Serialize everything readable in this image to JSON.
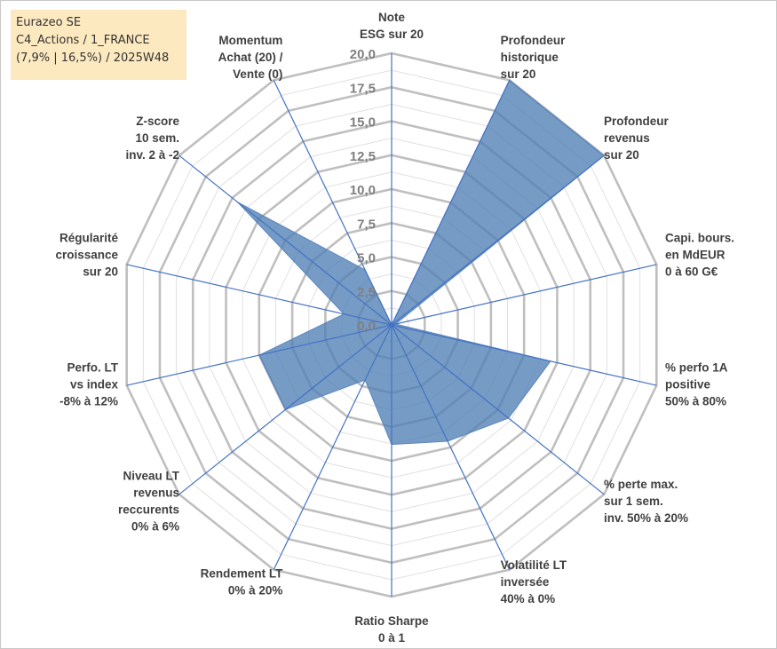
{
  "header": {
    "title_lines": [
      "Eurazeo SE",
      "C4_Actions / 1_FRANCE",
      "(7,9% | 16,5%) / 2025W48"
    ]
  },
  "colors": {
    "fill": "#4f7fb5",
    "spoke": "#4472c4",
    "major_grid": "#bfbfbf",
    "minor_grid": "#e0e0e0",
    "title_bg": "#fde9c0"
  },
  "chart_data": {
    "type": "radar",
    "r_range": [
      0,
      20
    ],
    "major_step": 2.5,
    "minor_step": 1.25,
    "tick_labels": [
      "0,0",
      "2,5",
      "5,0",
      "7,5",
      "10,0",
      "12,5",
      "15,0",
      "17,5",
      "20,0"
    ],
    "axes": [
      {
        "label": [
          "Note",
          "ESG sur 20"
        ],
        "value": 0
      },
      {
        "label": [
          "Profondeur",
          "historique",
          "sur 20"
        ],
        "value": 20
      },
      {
        "label": [
          "Profondeur",
          "revenus",
          "sur 20"
        ],
        "value": 20
      },
      {
        "label": [
          "Capi. bours.",
          "en MdEUR",
          "0 à 60 G€"
        ],
        "value": 0.3
      },
      {
        "label": [
          "% perfo 1A",
          "positive",
          "50% à 80%"
        ],
        "value": 12
      },
      {
        "label": [
          "% perte max.",
          "sur 1 sem.",
          "inv. 50% à 20%"
        ],
        "value": 11
      },
      {
        "label": [
          "Volatilité LT",
          "inversée",
          "40% à 0%"
        ],
        "value": 9.5
      },
      {
        "label": [
          "Ratio Sharpe",
          "0 à 1"
        ],
        "value": 8.8
      },
      {
        "label": [
          "Rendement LT",
          "0% à 20%"
        ],
        "value": 4.5
      },
      {
        "label": [
          "Niveau LT",
          "revenus",
          "reccurents",
          "0% à 6%"
        ],
        "value": 10
      },
      {
        "label": [
          "Perfo. LT",
          "vs index",
          "-8% à 12%"
        ],
        "value": 10
      },
      {
        "label": [
          "Régularité",
          "croissance",
          "sur 20"
        ],
        "value": 3.6
      },
      {
        "label": [
          "Z-score",
          "10 sem.",
          "inv. 2 à -2"
        ],
        "value": 14.5
      },
      {
        "label": [
          "Momentum",
          "Achat (20) /",
          "Vente (0)"
        ],
        "value": 4.5
      }
    ]
  }
}
